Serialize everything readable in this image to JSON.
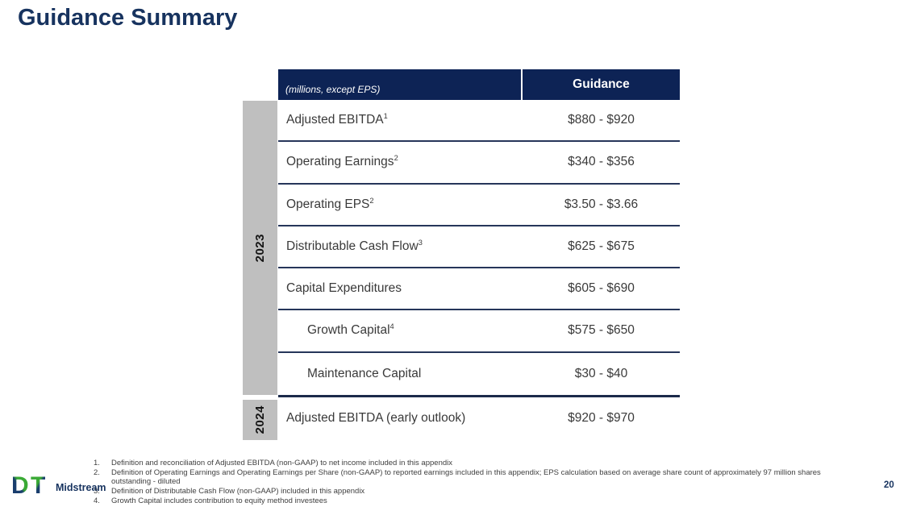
{
  "title": "Guidance Summary",
  "colors": {
    "navy_header": "#0d2355",
    "navy_title": "#17335f",
    "gray_band": "#bfbfbf",
    "row_divider": "#26365a",
    "logo_green": "#3aaa35",
    "logo_navy": "#1a3e6e"
  },
  "table": {
    "header": {
      "note": "(millions,  except EPS)",
      "guidance_label": "Guidance"
    },
    "year_bands": [
      {
        "year": "2023"
      },
      {
        "year": "2024"
      }
    ],
    "rows": [
      {
        "label": "Adjusted EBITDA",
        "sup": "1",
        "value": "$880 - $920",
        "section": "2023",
        "indent": false
      },
      {
        "label": "Operating Earnings",
        "sup": "2",
        "value": "$340 - $356",
        "section": "2023",
        "indent": false
      },
      {
        "label": "Operating EPS",
        "sup": "2",
        "value": "$3.50 - $3.66",
        "section": "2023",
        "indent": false
      },
      {
        "label": "Distributable Cash Flow",
        "sup": "3",
        "value": "$625 - $675",
        "section": "2023",
        "indent": false
      },
      {
        "label": "Capital Expenditures",
        "sup": "",
        "value": "$605 - $690",
        "section": "2023",
        "indent": false
      },
      {
        "label": "Growth Capital",
        "sup": "4",
        "value": "$575 - $650",
        "section": "2023",
        "indent": true
      },
      {
        "label": "Maintenance Capital",
        "sup": "",
        "value": "$30 - $40",
        "section": "2023",
        "indent": true
      },
      {
        "label": "Adjusted EBITDA (early outlook)",
        "sup": "",
        "value": "$920 - $970",
        "section": "2024",
        "indent": false
      }
    ]
  },
  "footnotes": [
    {
      "num": "1.",
      "text": "Definition and reconciliation of Adjusted EBITDA (non-GAAP) to net income included in this appendix"
    },
    {
      "num": "2.",
      "text": "Definition of Operating Earnings and Operating Earnings per Share (non-GAAP) to reported earnings included in this appendix; EPS calculation based on average share count of approximately 97 million shares outstanding - diluted"
    },
    {
      "num": "3.",
      "text": "Definition of Distributable Cash Flow (non-GAAP) included in this appendix"
    },
    {
      "num": "4.",
      "text": "Growth Capital includes contribution to equity method investees"
    }
  ],
  "footer": {
    "logo_letters": "DT",
    "logo_text": "Midstream",
    "page_number": "20"
  }
}
